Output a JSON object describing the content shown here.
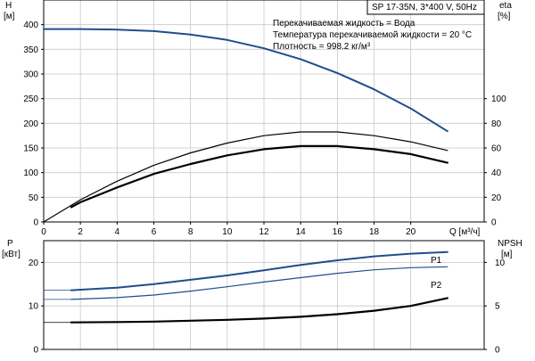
{
  "chart_data": [
    {
      "type": "line",
      "panel": "top",
      "xlabel": "Q [м³/ч]",
      "ylabel_left": [
        "H",
        "[м]"
      ],
      "ylabel_right": [
        "eta",
        "[%]"
      ],
      "xlim": [
        0,
        24
      ],
      "ylim_left": [
        0,
        450
      ],
      "ylim_right": [
        0,
        180
      ],
      "x_ticks": [
        0,
        2,
        4,
        6,
        8,
        10,
        12,
        14,
        16,
        18,
        20
      ],
      "y_ticks_left": [
        0,
        50,
        100,
        150,
        200,
        250,
        300,
        350,
        400
      ],
      "y_ticks_right": [
        0,
        20,
        40,
        60,
        80,
        100
      ],
      "grid": true,
      "series": [
        {
          "key": "H",
          "axis": "left",
          "color": "#1f4e8c",
          "width": 2,
          "points": [
            [
              0,
              391
            ],
            [
              2,
              391
            ],
            [
              4,
              390
            ],
            [
              6,
              387
            ],
            [
              8,
              380
            ],
            [
              10,
              369
            ],
            [
              12,
              352
            ],
            [
              14,
              330
            ],
            [
              16,
              302
            ],
            [
              18,
              269
            ],
            [
              20,
              230
            ],
            [
              22,
              184
            ]
          ]
        },
        {
          "key": "eta",
          "axis": "right",
          "color": "#000000",
          "width": 1.2,
          "points": [
            [
              0,
              0
            ],
            [
              2,
              18
            ],
            [
              4,
              33
            ],
            [
              6,
              46
            ],
            [
              8,
              56
            ],
            [
              10,
              64
            ],
            [
              12,
              70
            ],
            [
              14,
              73
            ],
            [
              16,
              73
            ],
            [
              18,
              70
            ],
            [
              20,
              65
            ],
            [
              22,
              58
            ]
          ]
        },
        {
          "key": "eta_total",
          "axis": "right",
          "color": "#000000",
          "width": 2.2,
          "points": [
            [
              1.5,
              12
            ],
            [
              2,
              16
            ],
            [
              4,
              28
            ],
            [
              6,
              39
            ],
            [
              8,
              47
            ],
            [
              10,
              54
            ],
            [
              12,
              59
            ],
            [
              14,
              61.5
            ],
            [
              16,
              61.5
            ],
            [
              18,
              59
            ],
            [
              20,
              55
            ],
            [
              22,
              48
            ]
          ]
        }
      ],
      "legend_lines": [
        "Перекачиваемая жидкость = Вода",
        "Температура перекачиваемой жидкости = 20 °C",
        "Плотность = 998.2 кг/м³"
      ],
      "model_label": "SP 17-35N, 3*400 V, 50Hz"
    },
    {
      "type": "line",
      "panel": "bottom",
      "ylabel_left": [
        "P",
        "[кВт]"
      ],
      "ylabel_right": [
        "NPSH",
        "[м]"
      ],
      "xlim": [
        0,
        24
      ],
      "ylim_left": [
        0,
        25
      ],
      "ylim_right": [
        0,
        12.5
      ],
      "y_ticks_left": [
        0,
        10,
        20
      ],
      "y_ticks_right": [
        0,
        5,
        10
      ],
      "grid": true,
      "series": [
        {
          "name": "P1",
          "axis": "left",
          "color": "#1f4e8c",
          "width": 2,
          "points": [
            [
              1.5,
              13.6
            ],
            [
              4,
              14.2
            ],
            [
              6,
              15
            ],
            [
              8,
              16
            ],
            [
              10,
              17
            ],
            [
              12,
              18.2
            ],
            [
              14,
              19.4
            ],
            [
              16,
              20.5
            ],
            [
              18,
              21.4
            ],
            [
              20,
              22
            ],
            [
              22,
              22.4
            ]
          ]
        },
        {
          "name": "P2",
          "axis": "left",
          "color": "#1f4e8c",
          "width": 1.2,
          "points": [
            [
              1.5,
              11.5
            ],
            [
              4,
              11.9
            ],
            [
              6,
              12.5
            ],
            [
              8,
              13.4
            ],
            [
              10,
              14.4
            ],
            [
              12,
              15.5
            ],
            [
              14,
              16.5
            ],
            [
              16,
              17.5
            ],
            [
              18,
              18.3
            ],
            [
              20,
              18.8
            ],
            [
              22,
              19
            ]
          ]
        },
        {
          "key": "NPSH",
          "axis": "right",
          "color": "#000000",
          "width": 2.2,
          "points": [
            [
              1.5,
              3.1
            ],
            [
              4,
              3.15
            ],
            [
              6,
              3.2
            ],
            [
              8,
              3.3
            ],
            [
              10,
              3.4
            ],
            [
              12,
              3.55
            ],
            [
              14,
              3.75
            ],
            [
              16,
              4.05
            ],
            [
              18,
              4.45
            ],
            [
              20,
              5.0
            ],
            [
              22,
              5.9
            ]
          ]
        }
      ]
    }
  ]
}
